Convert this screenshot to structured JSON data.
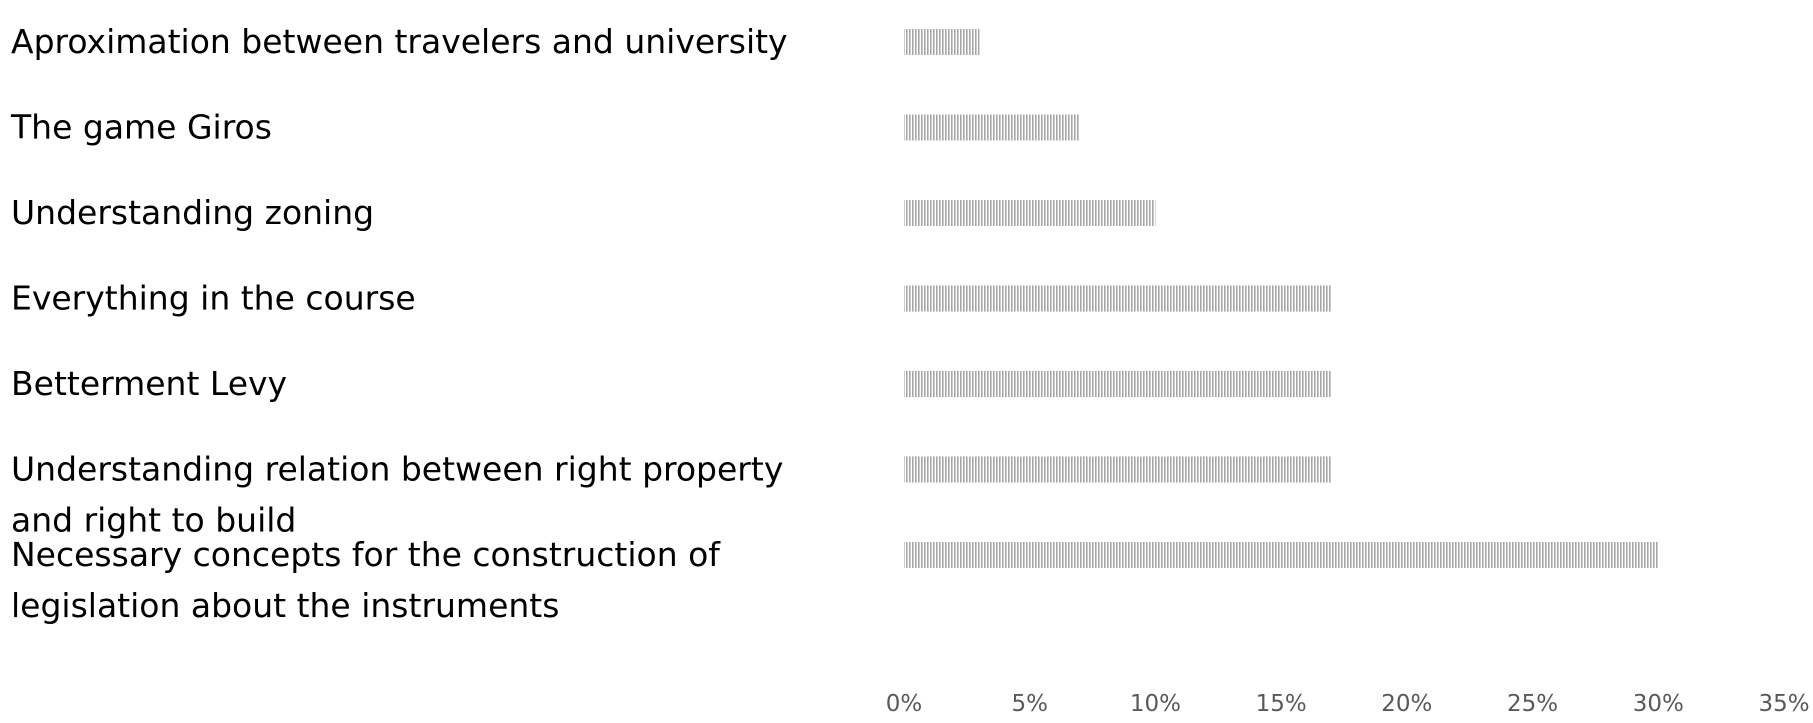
{
  "chart_data": {
    "type": "bar",
    "orientation": "horizontal",
    "title": "",
    "xlabel": "",
    "ylabel": "",
    "categories": [
      "Aproximation between travelers and university",
      "The game Giros",
      "Understanding zoning",
      "Everything in the course",
      "Betterment Levy",
      "Understanding relation between right property and right to build",
      "Necessary concepts for the construction of legislation about the instruments"
    ],
    "category_lines": [
      [
        "Aproximation between travelers and university"
      ],
      [
        "The game Giros"
      ],
      [
        "Understanding zoning"
      ],
      [
        "Everything in the course"
      ],
      [
        "Betterment Levy"
      ],
      [
        "Understanding relation between right property",
        "and right to build"
      ],
      [
        "Necessary concepts for the construction of",
        "legislation about the instruments"
      ]
    ],
    "values": [
      3,
      7,
      10,
      17,
      17,
      17,
      30
    ],
    "value_unit": "%",
    "xlim": [
      0,
      35
    ],
    "x_ticks": [
      "0%",
      "5%",
      "10%",
      "15%",
      "20%",
      "25%",
      "30%",
      "35%"
    ],
    "grid": false,
    "legend": "none",
    "bar_fill": "vertical-hatch",
    "bar_color": "#a6a6a6",
    "bar_background": "#ffffff"
  }
}
